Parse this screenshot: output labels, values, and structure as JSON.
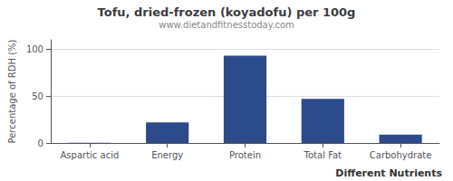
{
  "chart_data": {
    "type": "bar",
    "title": "Tofu, dried-frozen (koyadofu) per 100g",
    "subtitle": "www.dietandfitnesstoday.com",
    "xlabel": "Different Nutrients",
    "ylabel": "Percentage of RDH (%)",
    "categories": [
      "Aspartic acid",
      "Energy",
      "Protein",
      "Total Fat",
      "Carbohydrate"
    ],
    "values": [
      0.3,
      22,
      93,
      47,
      9
    ],
    "color": "#2d4a8a",
    "ylim": [
      0,
      110
    ],
    "yticks": [
      0,
      50,
      100
    ],
    "grid": true
  }
}
